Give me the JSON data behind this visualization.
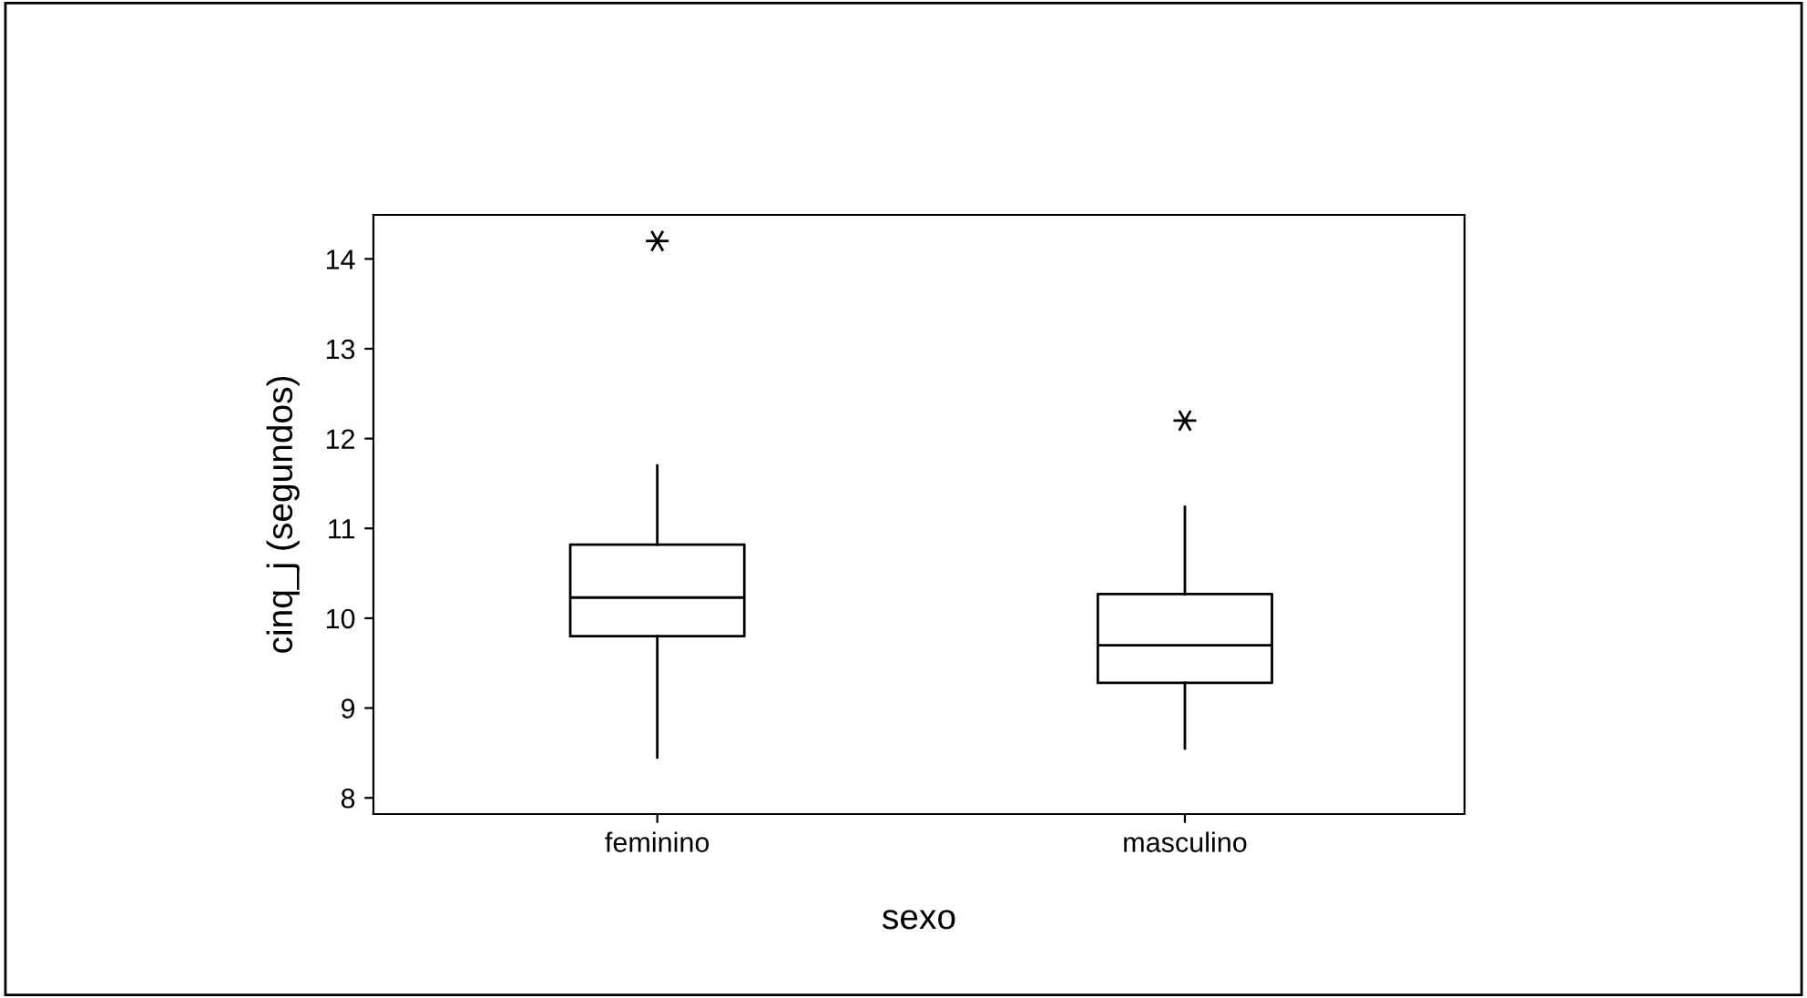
{
  "chart_data": {
    "type": "box",
    "xlabel": "sexo",
    "ylabel": "cinq_j (segundos)",
    "categories": [
      "feminino",
      "masculino"
    ],
    "boxes": [
      {
        "low": 8.45,
        "q1": 9.8,
        "median": 10.23,
        "q3": 10.82,
        "high": 11.7,
        "outliers": [
          14.2
        ]
      },
      {
        "low": 8.55,
        "q1": 9.28,
        "median": 9.7,
        "q3": 10.27,
        "high": 11.24,
        "outliers": [
          12.2
        ]
      }
    ],
    "ylim": [
      7.82,
      14.49
    ],
    "yticks": [
      8,
      9,
      10,
      11,
      12,
      13,
      14
    ],
    "grid": false,
    "color": "#000000",
    "marker": "star"
  }
}
